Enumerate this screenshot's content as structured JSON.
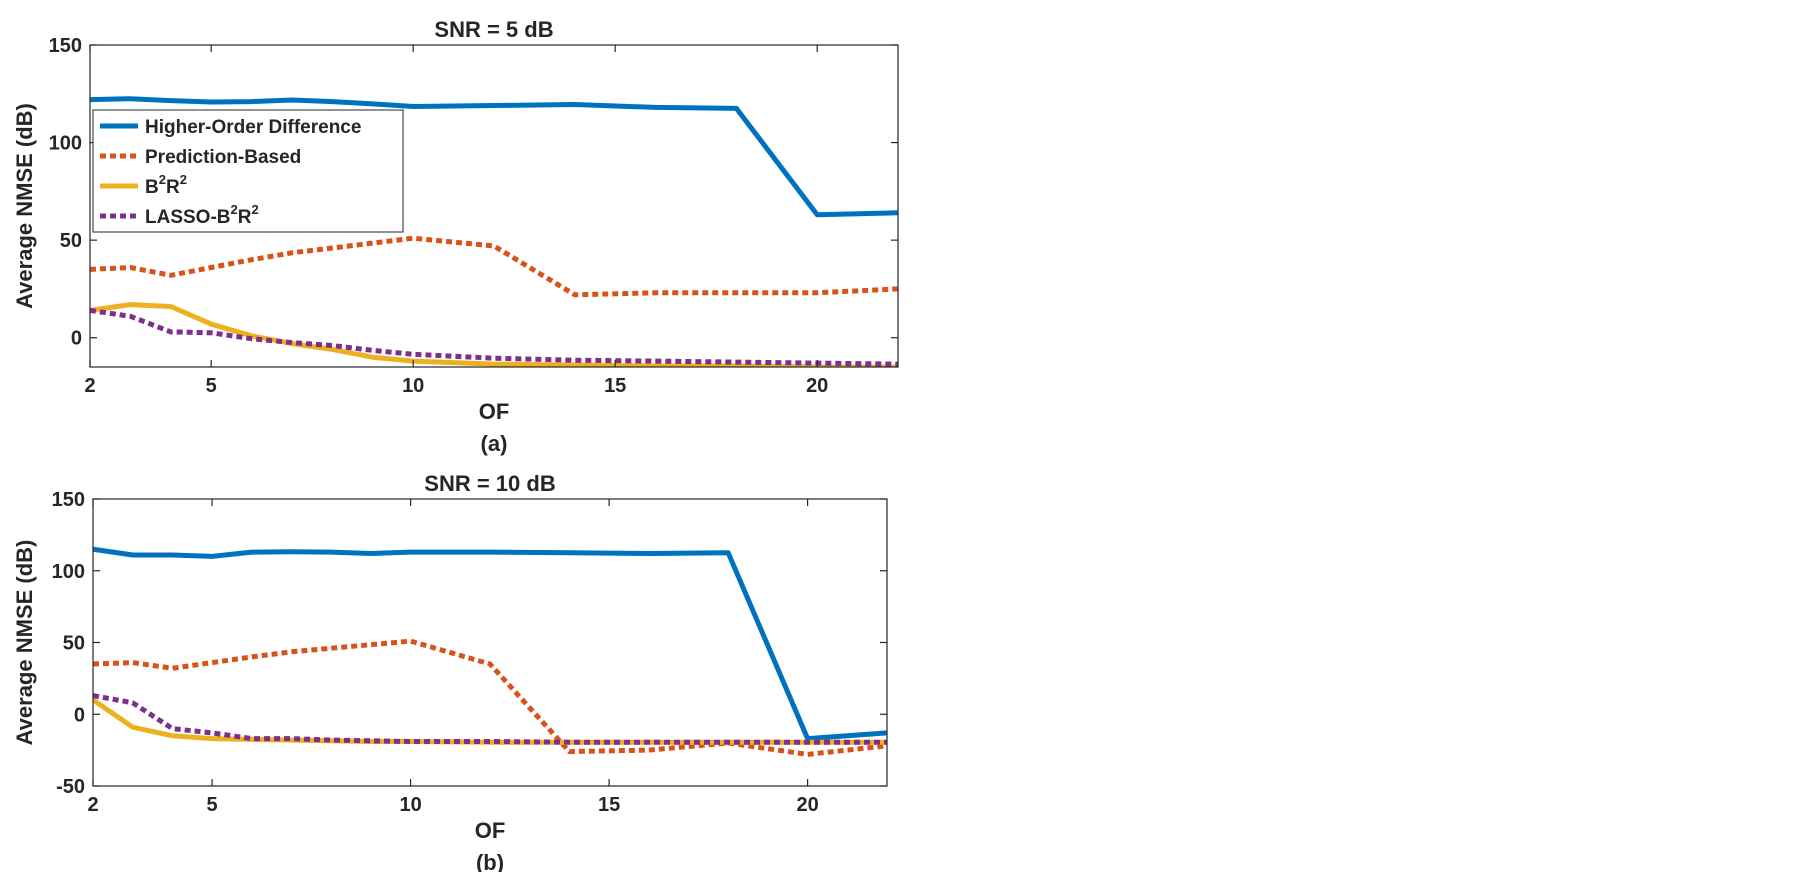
{
  "chart_data": [
    {
      "type": "line",
      "title": "SNR = 5 dB",
      "caption": "(a)",
      "xlabel": "OF",
      "ylabel": "Average NMSE (dB)",
      "xlim": [
        2,
        22
      ],
      "ylim": [
        -15,
        150
      ],
      "xticks": [
        2,
        5,
        10,
        15,
        20
      ],
      "yticks": [
        0,
        50,
        100,
        150
      ],
      "legend_position": "upper-left",
      "grid": false,
      "series": [
        {
          "name": "Higher-Order Difference",
          "name_base": "Higher-Order Difference",
          "name_sup1": "",
          "name_mid": "",
          "name_sup2": "",
          "color": "#0072BD",
          "dashed": false,
          "x": [
            2,
            3,
            4,
            5,
            6,
            7,
            8,
            9,
            10,
            12,
            14,
            16,
            18,
            20,
            22
          ],
          "y": [
            122,
            122.5,
            121.5,
            120.8,
            121,
            121.8,
            121,
            119.8,
            118.5,
            119,
            119.5,
            118,
            117.5,
            63,
            64
          ]
        },
        {
          "name": "Prediction-Based",
          "name_base": "Prediction-Based",
          "name_sup1": "",
          "name_mid": "",
          "name_sup2": "",
          "color": "#D95319",
          "dashed": true,
          "x": [
            2,
            3,
            4,
            5,
            6,
            7,
            8,
            9,
            10,
            12,
            14,
            16,
            18,
            20,
            22
          ],
          "y": [
            35,
            36,
            32,
            36,
            40,
            43.5,
            46,
            48.5,
            51,
            47,
            22,
            23,
            23,
            23,
            25
          ]
        },
        {
          "name": "B2R2",
          "name_base": "B",
          "name_sup1": "2",
          "name_mid": "R",
          "name_sup2": "2",
          "color": "#EDB120",
          "dashed": false,
          "x": [
            2,
            3,
            4,
            5,
            6,
            7,
            8,
            9,
            10,
            12,
            14,
            16,
            18,
            20,
            22
          ],
          "y": [
            14,
            17,
            16,
            7,
            1,
            -3,
            -6,
            -10,
            -12,
            -13.5,
            -14,
            -14.5,
            -14.5,
            -15,
            -15
          ]
        },
        {
          "name": "LASSO-B2R2",
          "name_base": "LASSO-B",
          "name_sup1": "2",
          "name_mid": "R",
          "name_sup2": "2",
          "color": "#7E2F8E",
          "dashed": true,
          "x": [
            2,
            3,
            4,
            5,
            6,
            7,
            8,
            9,
            10,
            12,
            14,
            16,
            18,
            20,
            22
          ],
          "y": [
            14,
            11,
            3,
            2.5,
            -0.5,
            -2.5,
            -4,
            -6.5,
            -8.5,
            -10.5,
            -11.5,
            -12,
            -12.5,
            -13,
            -13.5
          ]
        }
      ]
    },
    {
      "type": "line",
      "title": "SNR = 10 dB",
      "caption": "(b)",
      "xlabel": "OF",
      "ylabel": "Average NMSE (dB)",
      "xlim": [
        2,
        22
      ],
      "ylim": [
        -50,
        150
      ],
      "xticks": [
        2,
        5,
        10,
        15,
        20
      ],
      "yticks": [
        -50,
        0,
        50,
        100,
        150
      ],
      "grid": false,
      "series": [
        {
          "name": "Higher-Order Difference",
          "color": "#0072BD",
          "dashed": false,
          "x": [
            2,
            3,
            4,
            5,
            6,
            7,
            8,
            9,
            10,
            12,
            14,
            16,
            18,
            20,
            22
          ],
          "y": [
            115,
            111,
            111,
            110,
            113,
            113.3,
            113,
            112,
            113,
            113,
            112.5,
            112,
            112.5,
            -17,
            -13
          ]
        },
        {
          "name": "Prediction-Based",
          "color": "#D95319",
          "dashed": true,
          "x": [
            2,
            3,
            4,
            5,
            6,
            7,
            8,
            9,
            10,
            12,
            14,
            16,
            18,
            20,
            22
          ],
          "y": [
            35,
            36,
            32,
            36,
            40,
            43.5,
            46,
            48.5,
            51,
            35,
            -26,
            -25,
            -20,
            -28,
            -22
          ]
        },
        {
          "name": "B2R2",
          "color": "#EDB120",
          "dashed": false,
          "x": [
            2,
            3,
            4,
            5,
            6,
            7,
            8,
            9,
            10,
            12,
            14,
            16,
            18,
            20,
            22
          ],
          "y": [
            10,
            -9,
            -15,
            -17,
            -17.5,
            -18,
            -18.5,
            -19,
            -19,
            -19.5,
            -19.5,
            -19.5,
            -19.5,
            -19.5,
            -19.5
          ]
        },
        {
          "name": "LASSO-B2R2",
          "color": "#7E2F8E",
          "dashed": true,
          "x": [
            2,
            3,
            4,
            5,
            6,
            7,
            8,
            9,
            10,
            12,
            14,
            16,
            18,
            20,
            22
          ],
          "y": [
            13,
            8,
            -10,
            -13,
            -17,
            -17,
            -18,
            -18.5,
            -19,
            -19,
            -19.5,
            -19.5,
            -19.5,
            -19.5,
            -19.5
          ]
        }
      ]
    }
  ]
}
